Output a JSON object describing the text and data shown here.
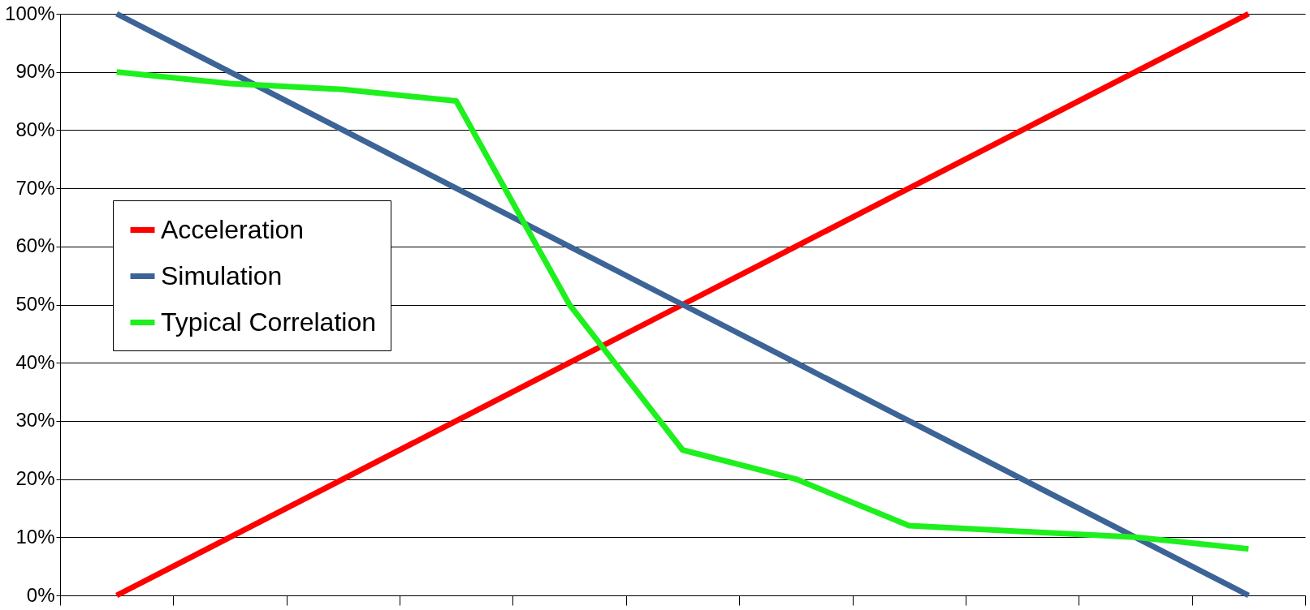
{
  "chart_data": {
    "type": "line",
    "categories": [
      null,
      null,
      null,
      null,
      null,
      null,
      null,
      null,
      null,
      null,
      null
    ],
    "series": [
      {
        "name": "Acceleration",
        "color": "#ff0000",
        "values": [
          0,
          10,
          20,
          30,
          40,
          50,
          60,
          70,
          80,
          90,
          100
        ]
      },
      {
        "name": "Simulation",
        "color": "#3c6496",
        "values": [
          100,
          90,
          80,
          70,
          60,
          50,
          40,
          30,
          20,
          10,
          0
        ]
      },
      {
        "name": "Typical Correlation",
        "color": "#1ef01e",
        "values": [
          90,
          88,
          87,
          85,
          50,
          25,
          20,
          12,
          11,
          10,
          8
        ]
      }
    ],
    "ylim": [
      0,
      100
    ],
    "yticks": [
      {
        "value": 0,
        "label": "0%"
      },
      {
        "value": 10,
        "label": "10%"
      },
      {
        "value": 20,
        "label": "20%"
      },
      {
        "value": 30,
        "label": "30%"
      },
      {
        "value": 40,
        "label": "40%"
      },
      {
        "value": 50,
        "label": "50%"
      },
      {
        "value": 60,
        "label": "60%"
      },
      {
        "value": 70,
        "label": "70%"
      },
      {
        "value": 80,
        "label": "80%"
      },
      {
        "value": 90,
        "label": "90%"
      },
      {
        "value": 100,
        "label": "100%"
      }
    ],
    "grid": "y",
    "legend": "left",
    "tick_labels": "y",
    "marker": "none",
    "line_style": "solid"
  }
}
